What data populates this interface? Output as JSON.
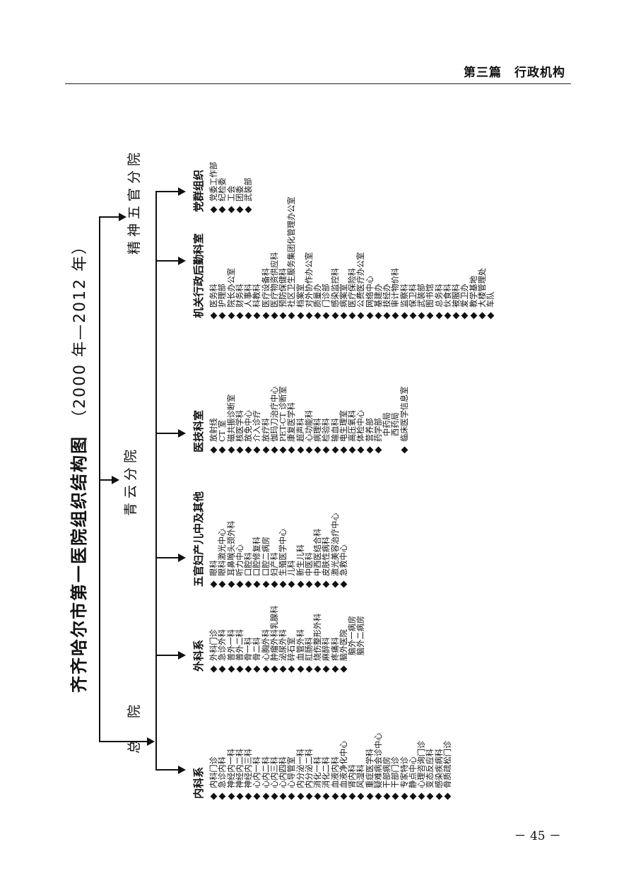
{
  "header": {
    "title": "第三篇　行政机构"
  },
  "page_number": "－ 45 －",
  "chart": {
    "title": "齐齐哈尔市第一医院组织结构图",
    "years": "（2000 年—2012 年）",
    "branches": [
      "总　院",
      "青云分院",
      "精神五官分院"
    ],
    "departments": [
      {
        "title": "内科系",
        "items": [
          {
            "text": "内科门诊",
            "bullet": true
          },
          {
            "text": "急诊内科",
            "bullet": true
          },
          {
            "text": "神经内一科",
            "bullet": true
          },
          {
            "text": "神经内二科",
            "bullet": true
          },
          {
            "text": "神经内三科",
            "bullet": true
          },
          {
            "text": "心内一科",
            "bullet": true
          },
          {
            "text": "心内二科",
            "bullet": true
          },
          {
            "text": "心内三科",
            "bullet": true
          },
          {
            "text": "心内四科",
            "bullet": true
          },
          {
            "text": "心导管室",
            "bullet": true
          },
          {
            "text": "内分泌一科",
            "bullet": true
          },
          {
            "text": "内分泌二科",
            "bullet": true
          },
          {
            "text": "消化一科",
            "bullet": true
          },
          {
            "text": "消化二科",
            "bullet": true
          },
          {
            "text": "血液内科",
            "bullet": true
          },
          {
            "text": "血液净化中心",
            "bullet": true
          },
          {
            "text": "肾内科",
            "bullet": true
          },
          {
            "text": "风湿科",
            "bullet": true
          },
          {
            "text": "重症医学科",
            "bullet": true
          },
          {
            "text": "疑难病会诊中心",
            "bullet": true
          },
          {
            "text": "干部病房",
            "bullet": true
          },
          {
            "text": "干部门诊",
            "bullet": true
          },
          {
            "text": "专家特诊",
            "bullet": true
          },
          {
            "text": "静点中心",
            "bullet": true
          },
          {
            "text": "心理咨询门诊",
            "bullet": true
          },
          {
            "text": "变态反应科",
            "bullet": true
          },
          {
            "text": "感染疾病科",
            "bullet": true
          },
          {
            "text": "骨质疏松门诊",
            "bullet": true
          }
        ]
      },
      {
        "title": "外科系",
        "items": [
          {
            "text": "外科门诊",
            "bullet": true
          },
          {
            "text": "急诊外科",
            "bullet": true
          },
          {
            "text": "普外一科",
            "bullet": true
          },
          {
            "text": "普外二科",
            "bullet": true
          },
          {
            "text": "骨一科",
            "bullet": true
          },
          {
            "text": "骨二科",
            "bullet": true
          },
          {
            "text": "心胸外科",
            "bullet": true
          },
          {
            "text": "肿瘤外科乳腺科",
            "bullet": true
          },
          {
            "text": "泌尿外科",
            "bullet": true
          },
          {
            "text": "碎石室",
            "bullet": true
          },
          {
            "text": "血管外科",
            "bullet": true
          },
          {
            "text": "肛肠科",
            "bullet": true
          },
          {
            "text": "烧伤整形外科",
            "bullet": true
          },
          {
            "text": "麻醉科",
            "bullet": true
          },
          {
            "text": "疼痛科",
            "bullet": true
          },
          {
            "text": "脑外医院",
            "bullet": true
          },
          {
            "text": "脑外一病房",
            "bullet": false
          },
          {
            "text": "脑外二病房",
            "bullet": false
          }
        ]
      },
      {
        "title": "五官妇产儿中及其他",
        "items": [
          {
            "text": "眼科",
            "bullet": true
          },
          {
            "text": "眼科激光中心",
            "bullet": true
          },
          {
            "text": "耳鼻喉头颈外科",
            "bullet": true
          },
          {
            "text": "听力中心",
            "bullet": true
          },
          {
            "text": "口腔科",
            "bullet": true
          },
          {
            "text": "口腔修复科",
            "bullet": true
          },
          {
            "text": "口腔二病房",
            "bullet": true
          },
          {
            "text": "妇产科",
            "bullet": true
          },
          {
            "text": "生殖医学中心",
            "bullet": true
          },
          {
            "text": "儿科",
            "bullet": true
          },
          {
            "text": "新生儿科",
            "bullet": true
          },
          {
            "text": "中医科",
            "bullet": true
          },
          {
            "text": "中西医结合科",
            "bullet": true
          },
          {
            "text": "皮肤性病科",
            "bullet": true
          },
          {
            "text": "激光美容治疗中心",
            "bullet": true
          },
          {
            "text": "急救中心",
            "bullet": true
          }
        ]
      },
      {
        "title": "医技科室",
        "items": [
          {
            "text": "放射线",
            "bullet": true
          },
          {
            "text": "CT 室",
            "bullet": true
          },
          {
            "text": "磁共振诊断室",
            "bullet": true
          },
          {
            "text": "核医学科",
            "bullet": true
          },
          {
            "text": "放免中心",
            "bullet": true
          },
          {
            "text": "介入诊疗",
            "bullet": true
          },
          {
            "text": "放疗科",
            "bullet": true
          },
          {
            "text": "伽玛刀治疗中心",
            "bullet": true
          },
          {
            "text": "PET-CT 诊断室",
            "bullet": true
          },
          {
            "text": "康复医学科",
            "bullet": true
          },
          {
            "text": "超声科",
            "bullet": true
          },
          {
            "text": "心功能科",
            "bullet": true
          },
          {
            "text": "病理科",
            "bullet": true
          },
          {
            "text": "检验科",
            "bullet": true
          },
          {
            "text": "输血科",
            "bullet": true
          },
          {
            "text": "电生理室",
            "bullet": true
          },
          {
            "text": "高压氧科",
            "bullet": true
          },
          {
            "text": "体检中心",
            "bullet": true
          },
          {
            "text": "营养部",
            "bullet": true
          },
          {
            "text": "药学部",
            "bullet": true
          },
          {
            "text": "中药局",
            "bullet": false
          },
          {
            "text": "西药局",
            "bullet": false
          },
          {
            "text": "临床医学信息室",
            "bullet": true
          }
        ]
      },
      {
        "title": "机关行政后勤科室",
        "items": [
          {
            "text": "医务科",
            "bullet": true
          },
          {
            "text": "护理部",
            "bullet": true
          },
          {
            "text": "院长办公室",
            "bullet": true
          },
          {
            "text": "财务科",
            "bullet": true
          },
          {
            "text": "人事科",
            "bullet": true
          },
          {
            "text": "科教科",
            "bullet": true
          },
          {
            "text": "医疗设备科",
            "bullet": true
          },
          {
            "text": "医疗物资供应科",
            "bullet": true
          },
          {
            "text": "预防保健科",
            "bullet": true
          },
          {
            "text": "社区卫生服务集团化管理办公室",
            "bullet": true
          },
          {
            "text": "档案室",
            "bullet": true
          },
          {
            "text": "对外协作办公室",
            "bullet": true
          },
          {
            "text": "质量办",
            "bullet": true
          },
          {
            "text": "门诊部",
            "bullet": true
          },
          {
            "text": "感染监控科",
            "bullet": true
          },
          {
            "text": "病案室",
            "bullet": true
          },
          {
            "text": "医疗保险科",
            "bullet": true
          },
          {
            "text": "公费医疗办公室",
            "bullet": true
          },
          {
            "text": "网络中心",
            "bullet": true
          },
          {
            "text": "基建办",
            "bullet": true
          },
          {
            "text": "技经办",
            "bullet": true
          },
          {
            "text": "审计物价科",
            "bullet": true
          },
          {
            "text": "监察科",
            "bullet": true
          },
          {
            "text": "保卫科",
            "bullet": true
          },
          {
            "text": "武装部",
            "bullet": true
          },
          {
            "text": "图书馆",
            "bullet": true
          },
          {
            "text": "总务科",
            "bullet": true
          },
          {
            "text": "伙食科",
            "bullet": true
          },
          {
            "text": "被服科",
            "bullet": true
          },
          {
            "text": "爱卫办",
            "bullet": true
          },
          {
            "text": "教学基地",
            "bullet": true
          },
          {
            "text": "大楼管理处",
            "bullet": true
          },
          {
            "text": "车队",
            "bullet": true
          }
        ]
      },
      {
        "title": "党群组织",
        "items": [
          {
            "text": "党委工作部",
            "bullet": true
          },
          {
            "text": "纪检委",
            "bullet": true
          },
          {
            "text": "工会",
            "bullet": true
          },
          {
            "text": "团委",
            "bullet": true
          },
          {
            "text": "武装部",
            "bullet": true
          }
        ]
      }
    ]
  }
}
